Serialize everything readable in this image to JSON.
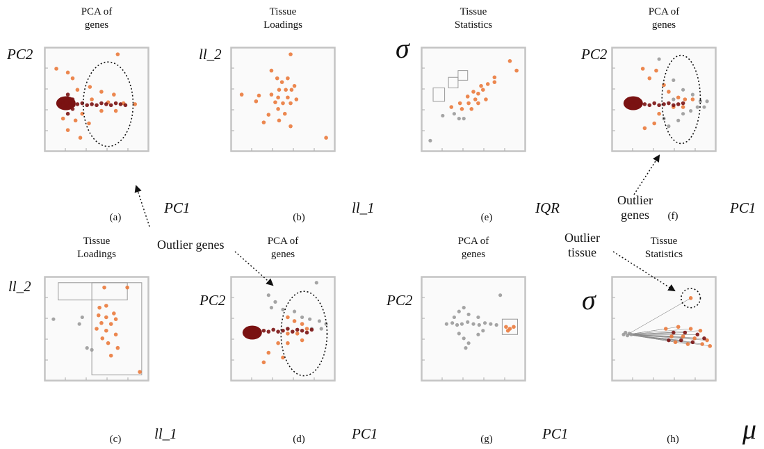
{
  "panels": [
    {
      "id": "a",
      "title": [
        "PCA of",
        "genes"
      ],
      "caption": "(a)",
      "xlabel": "PC1",
      "ylabel": "PC2"
    },
    {
      "id": "b",
      "title": [
        "Tissue",
        "Loadings"
      ],
      "caption": "(b)",
      "xlabel": "ll_1",
      "ylabel": "ll_2"
    },
    {
      "id": "e",
      "title": [
        "Tissue",
        "Statistics"
      ],
      "caption": "(e)",
      "xlabel": "IQR",
      "ylabel": "σ"
    },
    {
      "id": "f",
      "title": [
        "PCA of",
        "genes"
      ],
      "caption": "(f)",
      "xlabel": "PC1",
      "ylabel": "PC2"
    },
    {
      "id": "c",
      "title": [
        "Tissue",
        "Loadings"
      ],
      "caption": "(c)",
      "xlabel": "ll_1",
      "ylabel": "ll_2"
    },
    {
      "id": "d",
      "title": [
        "PCA of",
        "genes"
      ],
      "caption": "(d)",
      "xlabel": "PC1",
      "ylabel": "PC2"
    },
    {
      "id": "g",
      "title": [
        "PCA of",
        "genes"
      ],
      "caption": "(g)",
      "xlabel": "PC1",
      "ylabel": "PC2"
    },
    {
      "id": "h",
      "title": [
        "Tissue",
        "Statistics"
      ],
      "caption": "(h)",
      "xlabel": "μ",
      "ylabel": "σ"
    }
  ],
  "annotations": {
    "outlier_genes_mid": "Outlier genes",
    "outlier_genes_f": [
      "Outlier",
      "genes"
    ],
    "outlier_tissue": [
      "Outlier",
      "tissue"
    ]
  },
  "colors": {
    "orange": "#ea7a3c",
    "dark": "#7a1212",
    "grey": "#9a9a9a",
    "frame": "#c4c4c4"
  },
  "chart_data": [
    {
      "type": "scatter",
      "panel": "a",
      "note": "gene PCA, orange/dark-red points; outlier region circled",
      "points_orange": [
        [
          0.72,
          0.97
        ],
        [
          0.08,
          0.82
        ],
        [
          0.2,
          0.78
        ],
        [
          0.25,
          0.72
        ],
        [
          0.43,
          0.63
        ],
        [
          0.3,
          0.6
        ],
        [
          0.55,
          0.58
        ],
        [
          0.68,
          0.55
        ],
        [
          0.45,
          0.5
        ],
        [
          0.62,
          0.47
        ],
        [
          0.78,
          0.46
        ],
        [
          0.9,
          0.45
        ],
        [
          0.35,
          0.35
        ],
        [
          0.55,
          0.38
        ],
        [
          0.7,
          0.38
        ],
        [
          0.28,
          0.28
        ],
        [
          0.42,
          0.25
        ],
        [
          0.2,
          0.18
        ],
        [
          0.33,
          0.1
        ],
        [
          0.15,
          0.3
        ]
      ],
      "points_dark": [
        [
          0.12,
          0.45
        ],
        [
          0.15,
          0.47
        ],
        [
          0.18,
          0.43
        ],
        [
          0.22,
          0.46
        ],
        [
          0.26,
          0.44
        ],
        [
          0.3,
          0.45
        ],
        [
          0.35,
          0.46
        ],
        [
          0.4,
          0.44
        ],
        [
          0.45,
          0.45
        ],
        [
          0.5,
          0.44
        ],
        [
          0.55,
          0.46
        ],
        [
          0.6,
          0.45
        ],
        [
          0.65,
          0.44
        ],
        [
          0.7,
          0.46
        ],
        [
          0.75,
          0.45
        ],
        [
          0.8,
          0.44
        ],
        [
          0.25,
          0.5
        ],
        [
          0.25,
          0.4
        ],
        [
          0.2,
          0.55
        ],
        [
          0.2,
          0.35
        ]
      ]
    },
    {
      "type": "scatter",
      "panel": "b",
      "note": "tissue loadings, orange points",
      "points_orange": [
        [
          0.58,
          0.97
        ],
        [
          0.07,
          0.55
        ],
        [
          0.25,
          0.54
        ],
        [
          0.22,
          0.48
        ],
        [
          0.38,
          0.8
        ],
        [
          0.44,
          0.72
        ],
        [
          0.55,
          0.72
        ],
        [
          0.49,
          0.68
        ],
        [
          0.62,
          0.64
        ],
        [
          0.46,
          0.6
        ],
        [
          0.53,
          0.6
        ],
        [
          0.59,
          0.6
        ],
        [
          0.38,
          0.55
        ],
        [
          0.45,
          0.52
        ],
        [
          0.55,
          0.52
        ],
        [
          0.64,
          0.5
        ],
        [
          0.42,
          0.47
        ],
        [
          0.5,
          0.46
        ],
        [
          0.58,
          0.46
        ],
        [
          0.45,
          0.4
        ],
        [
          0.52,
          0.35
        ],
        [
          0.35,
          0.34
        ],
        [
          0.3,
          0.26
        ],
        [
          0.46,
          0.28
        ],
        [
          0.58,
          0.22
        ],
        [
          0.95,
          0.1
        ]
      ]
    },
    {
      "type": "scatter",
      "panel": "e",
      "note": "tissue statistics sigma vs IQR; three selection boxes",
      "points_orange": [
        [
          0.88,
          0.9
        ],
        [
          0.95,
          0.8
        ],
        [
          0.72,
          0.73
        ],
        [
          0.72,
          0.68
        ],
        [
          0.65,
          0.66
        ],
        [
          0.58,
          0.64
        ],
        [
          0.5,
          0.58
        ],
        [
          0.55,
          0.56
        ],
        [
          0.6,
          0.6
        ],
        [
          0.44,
          0.53
        ],
        [
          0.52,
          0.5
        ],
        [
          0.63,
          0.5
        ],
        [
          0.36,
          0.46
        ],
        [
          0.45,
          0.46
        ],
        [
          0.55,
          0.46
        ],
        [
          0.27,
          0.42
        ],
        [
          0.38,
          0.4
        ],
        [
          0.48,
          0.4
        ]
      ],
      "points_grey": [
        [
          0.3,
          0.35
        ],
        [
          0.35,
          0.3
        ],
        [
          0.4,
          0.3
        ],
        [
          0.18,
          0.33
        ],
        [
          0.05,
          0.07
        ]
      ],
      "boxes": [
        [
          0.08,
          0.48,
          0.2,
          0.62
        ],
        [
          0.24,
          0.62,
          0.34,
          0.73
        ],
        [
          0.34,
          0.7,
          0.44,
          0.8
        ]
      ]
    },
    {
      "type": "scatter",
      "panel": "f",
      "note": "gene PCA with grey/orange/dark points; outlier region circled",
      "points_grey": [
        [
          0.45,
          0.92
        ],
        [
          0.6,
          0.7
        ],
        [
          0.7,
          0.6
        ],
        [
          0.8,
          0.55
        ],
        [
          0.88,
          0.48
        ],
        [
          0.95,
          0.48
        ],
        [
          0.92,
          0.42
        ],
        [
          0.85,
          0.42
        ],
        [
          0.78,
          0.38
        ],
        [
          0.7,
          0.35
        ],
        [
          0.65,
          0.28
        ],
        [
          0.55,
          0.22
        ],
        [
          0.5,
          0.3
        ],
        [
          0.6,
          0.5
        ]
      ],
      "points_orange": [
        [
          0.28,
          0.82
        ],
        [
          0.42,
          0.8
        ],
        [
          0.35,
          0.72
        ],
        [
          0.5,
          0.65
        ],
        [
          0.55,
          0.58
        ],
        [
          0.65,
          0.52
        ],
        [
          0.72,
          0.5
        ],
        [
          0.8,
          0.5
        ],
        [
          0.6,
          0.42
        ],
        [
          0.7,
          0.42
        ],
        [
          0.45,
          0.35
        ],
        [
          0.4,
          0.25
        ],
        [
          0.3,
          0.2
        ]
      ],
      "points_dark": [
        [
          0.14,
          0.45
        ],
        [
          0.18,
          0.47
        ],
        [
          0.22,
          0.43
        ],
        [
          0.26,
          0.46
        ],
        [
          0.3,
          0.45
        ],
        [
          0.35,
          0.44
        ],
        [
          0.4,
          0.46
        ],
        [
          0.45,
          0.44
        ],
        [
          0.5,
          0.45
        ],
        [
          0.55,
          0.46
        ],
        [
          0.6,
          0.44
        ],
        [
          0.65,
          0.45
        ],
        [
          0.7,
          0.46
        ]
      ]
    },
    {
      "type": "scatter",
      "panel": "c",
      "note": "tissue loadings with two rectangular selections",
      "points_orange": [
        [
          0.58,
          0.93
        ],
        [
          0.82,
          0.93
        ],
        [
          0.53,
          0.72
        ],
        [
          0.6,
          0.74
        ],
        [
          0.68,
          0.66
        ],
        [
          0.52,
          0.64
        ],
        [
          0.6,
          0.62
        ],
        [
          0.7,
          0.6
        ],
        [
          0.55,
          0.56
        ],
        [
          0.65,
          0.55
        ],
        [
          0.5,
          0.5
        ],
        [
          0.6,
          0.48
        ],
        [
          0.7,
          0.44
        ],
        [
          0.56,
          0.4
        ],
        [
          0.62,
          0.35
        ],
        [
          0.72,
          0.3
        ],
        [
          0.65,
          0.22
        ],
        [
          0.95,
          0.05
        ]
      ],
      "points_grey": [
        [
          0.05,
          0.6
        ],
        [
          0.35,
          0.62
        ],
        [
          0.32,
          0.55
        ],
        [
          0.4,
          0.3
        ],
        [
          0.45,
          0.28
        ]
      ],
      "boxes": [
        [
          0.1,
          0.8,
          0.82,
          0.98
        ],
        [
          0.45,
          0.02,
          0.97,
          0.98
        ]
      ]
    },
    {
      "type": "scatter",
      "panel": "d",
      "note": "gene PCA with brushed points; outlier region circled",
      "points_grey": [
        [
          0.85,
          0.98
        ],
        [
          0.35,
          0.85
        ],
        [
          0.42,
          0.78
        ],
        [
          0.38,
          0.72
        ],
        [
          0.5,
          0.7
        ],
        [
          0.62,
          0.68
        ],
        [
          0.7,
          0.62
        ],
        [
          0.78,
          0.6
        ],
        [
          0.88,
          0.58
        ],
        [
          0.95,
          0.55
        ],
        [
          0.9,
          0.5
        ],
        [
          0.8,
          0.5
        ]
      ],
      "points_orange": [
        [
          0.55,
          0.62
        ],
        [
          0.62,
          0.58
        ],
        [
          0.7,
          0.55
        ],
        [
          0.75,
          0.5
        ],
        [
          0.55,
          0.45
        ],
        [
          0.65,
          0.45
        ],
        [
          0.45,
          0.35
        ],
        [
          0.55,
          0.35
        ],
        [
          0.7,
          0.38
        ],
        [
          0.35,
          0.25
        ],
        [
          0.5,
          0.2
        ],
        [
          0.3,
          0.15
        ]
      ],
      "points_dark": [
        [
          0.15,
          0.48
        ],
        [
          0.2,
          0.5
        ],
        [
          0.25,
          0.46
        ],
        [
          0.3,
          0.48
        ],
        [
          0.35,
          0.47
        ],
        [
          0.4,
          0.49
        ],
        [
          0.45,
          0.47
        ],
        [
          0.5,
          0.48
        ],
        [
          0.55,
          0.5
        ],
        [
          0.6,
          0.47
        ],
        [
          0.65,
          0.49
        ],
        [
          0.7,
          0.48
        ],
        [
          0.75,
          0.46
        ],
        [
          0.8,
          0.49
        ]
      ]
    },
    {
      "type": "scatter",
      "panel": "g",
      "note": "gene PCA mostly grey; small orange selection box at right",
      "points_grey": [
        [
          0.22,
          0.55
        ],
        [
          0.28,
          0.56
        ],
        [
          0.33,
          0.54
        ],
        [
          0.38,
          0.55
        ],
        [
          0.44,
          0.57
        ],
        [
          0.5,
          0.55
        ],
        [
          0.56,
          0.54
        ],
        [
          0.62,
          0.56
        ],
        [
          0.68,
          0.55
        ],
        [
          0.74,
          0.54
        ],
        [
          0.3,
          0.62
        ],
        [
          0.35,
          0.68
        ],
        [
          0.4,
          0.72
        ],
        [
          0.45,
          0.65
        ],
        [
          0.55,
          0.62
        ],
        [
          0.35,
          0.45
        ],
        [
          0.4,
          0.4
        ],
        [
          0.45,
          0.35
        ],
        [
          0.55,
          0.44
        ],
        [
          0.42,
          0.3
        ],
        [
          0.6,
          0.48
        ],
        [
          0.78,
          0.85
        ]
      ],
      "points_orange": [
        [
          0.84,
          0.52
        ],
        [
          0.88,
          0.5
        ],
        [
          0.92,
          0.52
        ],
        [
          0.86,
          0.48
        ]
      ],
      "boxes": [
        [
          0.8,
          0.44,
          0.96,
          0.6
        ]
      ]
    },
    {
      "type": "scatter",
      "panel": "h",
      "note": "tissue statistics sigma vs mu; lines from grey cluster to orange/dark tissue points; one outlier tissue circled",
      "origin": [
        0.12,
        0.44
      ],
      "points_orange": [
        [
          0.78,
          0.82
        ],
        [
          0.52,
          0.5
        ],
        [
          0.65,
          0.52
        ],
        [
          0.78,
          0.5
        ],
        [
          0.88,
          0.48
        ],
        [
          0.58,
          0.42
        ],
        [
          0.7,
          0.42
        ],
        [
          0.82,
          0.4
        ],
        [
          0.95,
          0.38
        ],
        [
          0.62,
          0.36
        ],
        [
          0.75,
          0.34
        ],
        [
          0.9,
          0.34
        ],
        [
          0.98,
          0.32
        ]
      ],
      "points_dark": [
        [
          0.6,
          0.46
        ],
        [
          0.72,
          0.46
        ],
        [
          0.85,
          0.44
        ],
        [
          0.68,
          0.38
        ],
        [
          0.8,
          0.36
        ],
        [
          0.92,
          0.4
        ],
        [
          0.55,
          0.38
        ]
      ],
      "points_grey": [
        [
          0.08,
          0.44
        ],
        [
          0.1,
          0.46
        ],
        [
          0.12,
          0.43
        ],
        [
          0.14,
          0.45
        ],
        [
          0.16,
          0.44
        ]
      ]
    }
  ]
}
